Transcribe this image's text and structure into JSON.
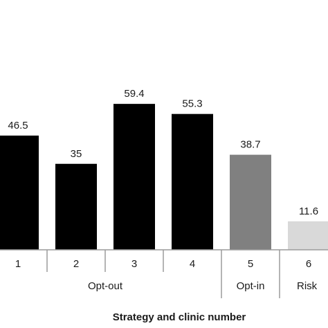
{
  "chart_data": {
    "type": "bar",
    "categories": [
      "1",
      "2",
      "3",
      "4",
      "5",
      "6"
    ],
    "values": [
      46.5,
      35,
      59.4,
      55.3,
      38.7,
      11.6
    ],
    "value_labels": [
      "46.5",
      "35",
      "59.4",
      "55.3",
      "38.7",
      "11.6"
    ],
    "bar_colors": [
      "#000000",
      "#000000",
      "#000000",
      "#000000",
      "#808080",
      "#d9d9d9"
    ],
    "groups": [
      {
        "label": "Opt-out",
        "categories": [
          "1",
          "2",
          "3",
          "4"
        ]
      },
      {
        "label": "Opt-in",
        "categories": [
          "5"
        ]
      },
      {
        "label": "Risk",
        "categories": [
          "6"
        ]
      }
    ],
    "xlabel": "Strategy and clinic number",
    "ylabel": "",
    "ylim": [
      0,
      80
    ],
    "grid": false,
    "legend": "none"
  }
}
